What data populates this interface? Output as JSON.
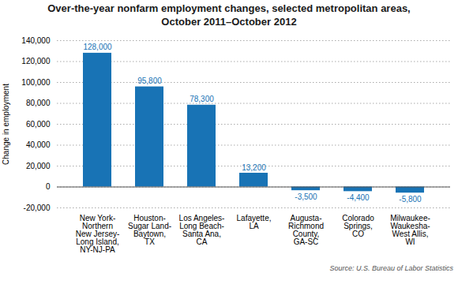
{
  "chart_data": {
    "type": "bar",
    "title": "Over-the-year nonfarm employment changes, selected metropolitan areas,\nOctober 2011–October 2012",
    "ylabel": "Change in employment",
    "source": "Source: U.S. Bureau of Labor Statistics",
    "categories": [
      "New York-\nNorthern\nNew Jersey-\nLong Island,\nNY-NJ-PA",
      "Houston-\nSugar Land-\nBaytown,\nTX",
      "Los Angeles-\nLong Beach-\nSanta Ana,\nCA",
      "Lafayette,\nLA",
      "Augusta-\nRichmond\nCounty,\nGA-SC",
      "Colorado\nSprings,\nCO",
      "Milwaukee-\nWaukesha-\nWest Allis,\nWI"
    ],
    "values": [
      128000,
      95800,
      78300,
      13200,
      -3500,
      -4400,
      -5800
    ],
    "value_labels": [
      "128,000",
      "95,800",
      "78,300",
      "13,200",
      "-3,500",
      "-4,400",
      "-5,800"
    ],
    "data_labels": true,
    "color": "#1873b5",
    "ylim": [
      -20000,
      140000
    ],
    "yticks": [
      {
        "value": -20000,
        "label": "-20,000"
      },
      0,
      {
        "value": 20000,
        "label": "20,000"
      },
      {
        "value": 40000,
        "label": "40,000"
      },
      {
        "value": 60000,
        "label": "60,000"
      },
      {
        "value": 80000,
        "label": "80,000"
      },
      {
        "value": 100000,
        "label": "100,000"
      },
      {
        "value": 120000,
        "label": "120,000"
      },
      {
        "value": 140000,
        "label": "140,000"
      }
    ],
    "grid": true
  }
}
